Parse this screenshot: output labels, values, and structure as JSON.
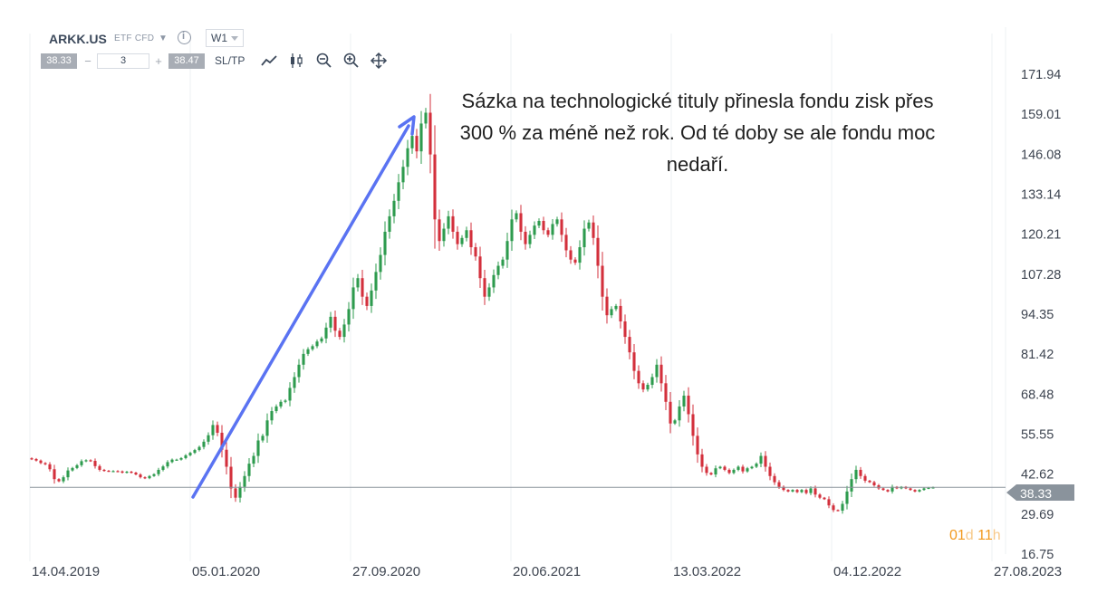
{
  "toolbar": {
    "symbol": "ARKK.US",
    "instrument_type": "ETF CFD",
    "timeframe": "W1",
    "bid": "38.33",
    "quantity": "3",
    "ask": "38.47",
    "sltp_label": "SL/TP",
    "minus": "−",
    "plus": "+"
  },
  "annotation": "Sázka na technologické tituly přinesla fondu zisk přes 300 % za méně než rok. Od té doby se ale fondu moc nedaří.",
  "countdown": {
    "d": "01",
    "d_unit": "d",
    "h": "11",
    "h_unit": "h"
  },
  "colors": {
    "up": "#2e9b4e",
    "down": "#d3303c",
    "arrow": "#5a73f2",
    "current_price": "#8a939c"
  },
  "chart_data": {
    "type": "candlestick",
    "symbol": "ARKK.US",
    "timeframe": "W1",
    "x_tick_labels": [
      "14.04.2019",
      "05.01.2020",
      "27.09.2020",
      "20.06.2021",
      "13.03.2022",
      "04.12.2022",
      "27.08.2023"
    ],
    "y_tick_labels": [
      "171.94",
      "159.01",
      "146.08",
      "133.14",
      "120.21",
      "107.28",
      "94.35",
      "81.42",
      "68.48",
      "55.55",
      "42.62",
      "29.69",
      "16.75"
    ],
    "ylim": [
      16.75,
      171.94
    ],
    "current_price": 38.33,
    "weekly_closes_approx": [
      47.5,
      47.0,
      46.2,
      45.8,
      44.2,
      41.0,
      40.3,
      41.6,
      43.8,
      44.6,
      45.5,
      46.8,
      47.1,
      46.9,
      45.2,
      44.0,
      43.7,
      43.6,
      43.6,
      43.5,
      43.1,
      43.4,
      43.1,
      42.5,
      41.6,
      41.3,
      42.0,
      42.6,
      44.0,
      45.1,
      46.5,
      47.3,
      47.3,
      47.8,
      48.7,
      49.5,
      50.4,
      51.4,
      53.1,
      55.2,
      58.5,
      56.0,
      50.5,
      45.0,
      38.0,
      35.0,
      38.5,
      42.0,
      46.0,
      48.5,
      53.5,
      55.0,
      60.0,
      63.0,
      64.5,
      66.0,
      66.4,
      70.5,
      74.0,
      78.0,
      81.5,
      83.0,
      84.0,
      85.5,
      86.5,
      90.0,
      93.5,
      89.0,
      87.0,
      91.0,
      96.0,
      103.0,
      106.0,
      100.0,
      97.0,
      102.0,
      108.0,
      113.5,
      121.0,
      126.0,
      131.0,
      137.0,
      142.0,
      148.0,
      152.0,
      147.0,
      156.0,
      159.5,
      146.0,
      125.0,
      118.0,
      122.0,
      126.0,
      121.0,
      117.0,
      119.0,
      121.5,
      116.0,
      113.0,
      106.0,
      100.0,
      103.0,
      107.0,
      110.0,
      112.0,
      118.0,
      125.0,
      127.0,
      121.0,
      117.0,
      120.0,
      123.0,
      124.5,
      121.5,
      120.0,
      123.5,
      125.0,
      120.0,
      115.0,
      112.0,
      111.0,
      116.0,
      122.0,
      124.0,
      119.0,
      110.0,
      100.0,
      94.0,
      96.0,
      97.0,
      92.0,
      87.0,
      82.0,
      76.0,
      72.0,
      70.0,
      71.5,
      74.0,
      78.0,
      72.0,
      66.0,
      59.0,
      60.0,
      64.5,
      68.0,
      62.0,
      55.0,
      49.0,
      45.0,
      43.0,
      42.5,
      44.5,
      45.0,
      44.0,
      43.0,
      44.0,
      45.0,
      43.5,
      44.5,
      45.0,
      46.0,
      48.5,
      45.0,
      42.0,
      40.0,
      38.5,
      37.5,
      37.0,
      37.5,
      36.8,
      37.5,
      36.5,
      38.0,
      36.0,
      35.0,
      34.5,
      32.5,
      31.0,
      30.8,
      33.0,
      37.0,
      41.0,
      44.0,
      42.0,
      40.5,
      40.0,
      39.0,
      38.0,
      37.5,
      37.0,
      38.5,
      38.0,
      38.5,
      38.0,
      37.5,
      37.0,
      37.5,
      38.0,
      38.2,
      38.33
    ]
  }
}
